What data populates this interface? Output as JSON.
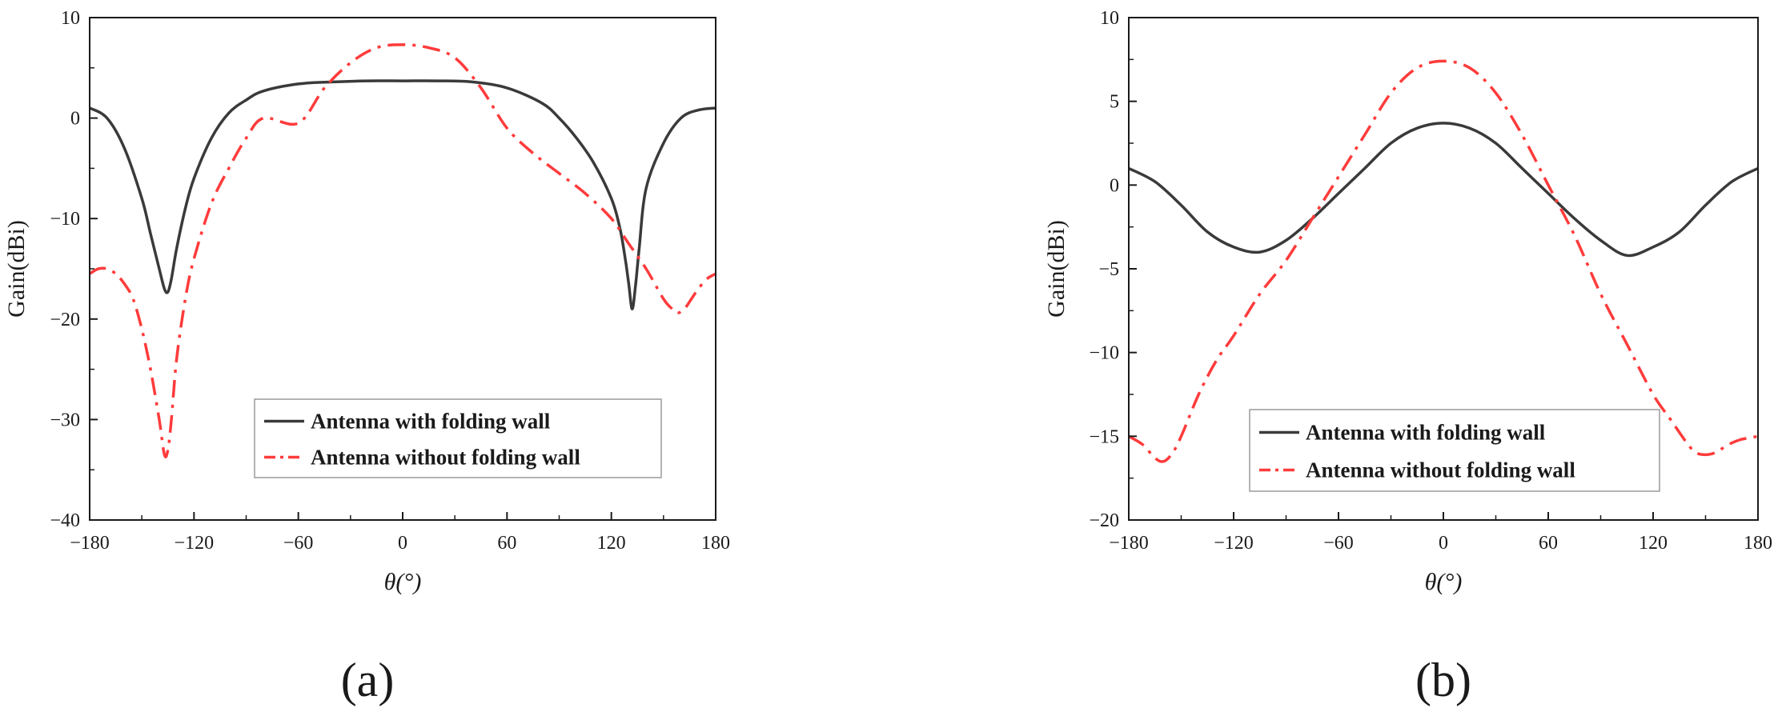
{
  "colors": {
    "with_wall": "#3a3a3a",
    "without_wall": "#ff3b3b",
    "axis": "#1a1a1a"
  },
  "chart_data": [
    {
      "id": "a",
      "caption": "(a)",
      "type": "line",
      "title": "",
      "xlabel": "θ(°)",
      "ylabel": "Gain(dBi)",
      "xlim": [
        -180,
        180
      ],
      "ylim": [
        -40,
        10
      ],
      "xticks": [
        -180,
        -120,
        -60,
        0,
        60,
        120,
        180
      ],
      "xtick_labels": [
        "−180",
        "−120",
        "−60",
        "0",
        "60",
        "120",
        "180"
      ],
      "yticks": [
        -40,
        -30,
        -20,
        -10,
        0,
        10
      ],
      "ytick_labels": [
        "−40",
        "−30",
        "−20",
        "−10",
        "0",
        "10"
      ],
      "grid": false,
      "legend_position": "bottom-right",
      "series": [
        {
          "name": "Antenna with folding wall",
          "style": "solid",
          "color": "#3a3a3a",
          "x": [
            -180,
            -170,
            -160,
            -150,
            -145,
            -140,
            -137,
            -135,
            -133,
            -130,
            -125,
            -120,
            -110,
            -100,
            -90,
            -80,
            -60,
            -40,
            -20,
            0,
            20,
            40,
            60,
            80,
            90,
            100,
            110,
            120,
            125,
            128,
            130,
            132,
            134,
            136,
            140,
            150,
            160,
            170,
            180
          ],
          "y": [
            1.0,
            0.0,
            -3.0,
            -8.0,
            -11.5,
            -15.0,
            -17.0,
            -17.3,
            -16.0,
            -13.0,
            -9.0,
            -6.0,
            -2.0,
            0.5,
            1.8,
            2.7,
            3.4,
            3.6,
            3.7,
            3.7,
            3.7,
            3.6,
            3.0,
            1.5,
            0.0,
            -2.0,
            -4.5,
            -8.0,
            -11.0,
            -14.0,
            -16.5,
            -19.0,
            -16.5,
            -13.0,
            -7.0,
            -2.5,
            0.0,
            0.8,
            1.0
          ]
        },
        {
          "name": "Antenna without folding wall",
          "style": "dashdot",
          "color": "#ff3b3b",
          "x": [
            -180,
            -175,
            -170,
            -165,
            -160,
            -155,
            -150,
            -145,
            -140,
            -137,
            -135,
            -133,
            -130,
            -125,
            -120,
            -110,
            -100,
            -90,
            -80,
            -60,
            -45,
            -30,
            -15,
            0,
            15,
            30,
            45,
            60,
            75,
            90,
            105,
            120,
            130,
            140,
            150,
            155,
            158,
            162,
            166,
            170,
            175,
            180
          ],
          "y": [
            -15.5,
            -15.0,
            -15.0,
            -15.5,
            -16.5,
            -18.0,
            -21.0,
            -25.0,
            -30.0,
            -33.5,
            -33.0,
            -30.0,
            -24.0,
            -18.0,
            -14.0,
            -8.5,
            -5.0,
            -2.0,
            0.0,
            -0.5,
            3.0,
            5.5,
            7.0,
            7.3,
            7.0,
            6.0,
            3.0,
            -1.0,
            -3.5,
            -5.5,
            -7.5,
            -10.0,
            -12.5,
            -15.0,
            -18.0,
            -19.0,
            -19.4,
            -19.0,
            -18.0,
            -17.0,
            -16.0,
            -15.5
          ]
        }
      ]
    },
    {
      "id": "b",
      "caption": "(b)",
      "type": "line",
      "title": "",
      "xlabel": "θ(°)",
      "ylabel": "Gain(dBi)",
      "xlim": [
        -180,
        180
      ],
      "ylim": [
        -20,
        10
      ],
      "xticks": [
        -180,
        -120,
        -60,
        0,
        60,
        120,
        180
      ],
      "xtick_labels": [
        "−180",
        "−120",
        "−60",
        "0",
        "60",
        "120",
        "180"
      ],
      "yticks": [
        -20,
        -15,
        -10,
        -5,
        0,
        5,
        10
      ],
      "ytick_labels": [
        "−20",
        "−15",
        "−10",
        "−5",
        "0",
        "5",
        "10"
      ],
      "grid": false,
      "legend_position": "bottom-right",
      "series": [
        {
          "name": "Antenna with folding wall",
          "style": "solid",
          "color": "#3a3a3a",
          "x": [
            -180,
            -165,
            -150,
            -135,
            -120,
            -105,
            -90,
            -75,
            -60,
            -45,
            -30,
            -15,
            0,
            15,
            30,
            45,
            60,
            75,
            90,
            105,
            120,
            135,
            150,
            165,
            180
          ],
          "y": [
            1.0,
            0.2,
            -1.2,
            -2.8,
            -3.7,
            -4.0,
            -3.3,
            -2.0,
            -0.5,
            1.0,
            2.5,
            3.4,
            3.7,
            3.4,
            2.5,
            1.0,
            -0.5,
            -2.0,
            -3.3,
            -4.2,
            -3.7,
            -2.8,
            -1.2,
            0.2,
            1.0
          ]
        },
        {
          "name": "Antenna without folding wall",
          "style": "dashdot",
          "color": "#ff3b3b",
          "x": [
            -180,
            -172,
            -165,
            -160,
            -155,
            -150,
            -140,
            -130,
            -120,
            -105,
            -90,
            -75,
            -60,
            -45,
            -30,
            -15,
            0,
            15,
            30,
            45,
            60,
            75,
            90,
            105,
            120,
            130,
            140,
            145,
            150,
            155,
            160,
            165,
            170,
            175,
            180
          ],
          "y": [
            -15.0,
            -15.5,
            -16.3,
            -16.5,
            -16.0,
            -15.0,
            -12.5,
            -10.5,
            -9.0,
            -6.5,
            -4.5,
            -2.0,
            0.5,
            3.0,
            5.5,
            7.0,
            7.4,
            7.0,
            5.5,
            3.0,
            0.0,
            -3.0,
            -6.5,
            -9.5,
            -12.5,
            -14.0,
            -15.5,
            -16.0,
            -16.1,
            -16.0,
            -15.7,
            -15.4,
            -15.2,
            -15.1,
            -15.0
          ]
        }
      ]
    }
  ]
}
